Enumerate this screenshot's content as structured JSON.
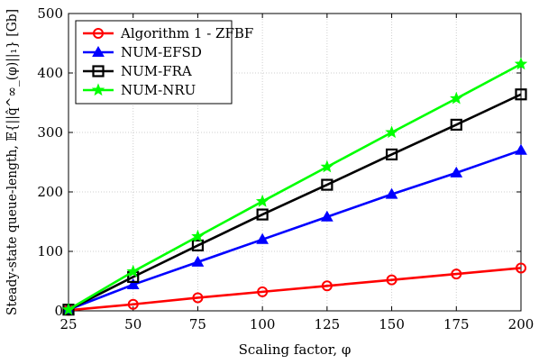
{
  "chart_data": {
    "type": "line",
    "xlabel": "Scaling factor, φ",
    "ylabel": "Steady-state queue-length, 𝔼{||q̂^∞_(φ)||₁} [Gb]",
    "x": [
      25,
      50,
      75,
      100,
      125,
      150,
      175,
      200
    ],
    "xlim": [
      25,
      200
    ],
    "ylim": [
      0,
      500
    ],
    "xticks": [
      25,
      50,
      75,
      100,
      125,
      150,
      175,
      200
    ],
    "yticks": [
      0,
      100,
      200,
      300,
      400,
      500
    ],
    "grid": true,
    "legend_position": "top-left",
    "series": [
      {
        "name": "Algorithm 1 - ZFBF",
        "color": "#ff0000",
        "marker": "circle",
        "values": [
          1,
          11,
          22,
          32,
          42,
          52,
          62,
          72
        ]
      },
      {
        "name": "NUM-EFSD",
        "color": "#0000ff",
        "marker": "triangle",
        "values": [
          2,
          44,
          82,
          120,
          158,
          196,
          232,
          270
        ]
      },
      {
        "name": "NUM-FRA",
        "color": "#000000",
        "marker": "square",
        "values": [
          2,
          57,
          110,
          162,
          212,
          263,
          313,
          364
        ]
      },
      {
        "name": "NUM-NRU",
        "color": "#00ff00",
        "marker": "star",
        "values": [
          2,
          66,
          125,
          184,
          242,
          300,
          357,
          415
        ]
      }
    ]
  }
}
